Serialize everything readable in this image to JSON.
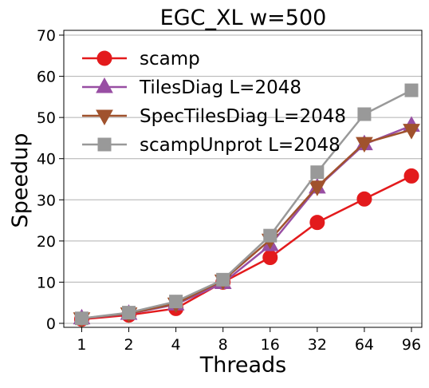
{
  "chart_data": {
    "type": "line",
    "title": "EGC_XL w=500",
    "xlabel": "Threads",
    "ylabel": "Speedup",
    "categories": [
      "1",
      "2",
      "4",
      "8",
      "16",
      "32",
      "64",
      "96"
    ],
    "ylim": [
      0,
      70
    ],
    "yticks": [
      "0",
      "10",
      "20",
      "30",
      "40",
      "50",
      "60",
      "70"
    ],
    "grid": "horizontal",
    "legend_position": "top-left",
    "series": [
      {
        "name": "scamp",
        "color": "#e31a1c",
        "marker": "circle",
        "values": [
          1.0,
          2.0,
          3.6,
          10.0,
          16.0,
          24.5,
          30.2,
          35.8
        ]
      },
      {
        "name": "TilesDiag L=2048",
        "color": "#984ea3",
        "marker": "triangle-up",
        "values": [
          1.2,
          2.3,
          4.6,
          9.8,
          19.0,
          33.0,
          43.5,
          48.0
        ]
      },
      {
        "name": "SpecTilesDiag L=2048",
        "color": "#a0522d",
        "marker": "triangle-down",
        "values": [
          1.2,
          2.4,
          4.8,
          10.4,
          20.3,
          33.2,
          43.8,
          47.0
        ]
      },
      {
        "name": "scampUnprot L=2048",
        "color": "#999999",
        "marker": "square",
        "values": [
          1.2,
          2.6,
          5.3,
          10.6,
          21.3,
          36.7,
          50.8,
          56.6
        ]
      }
    ]
  }
}
